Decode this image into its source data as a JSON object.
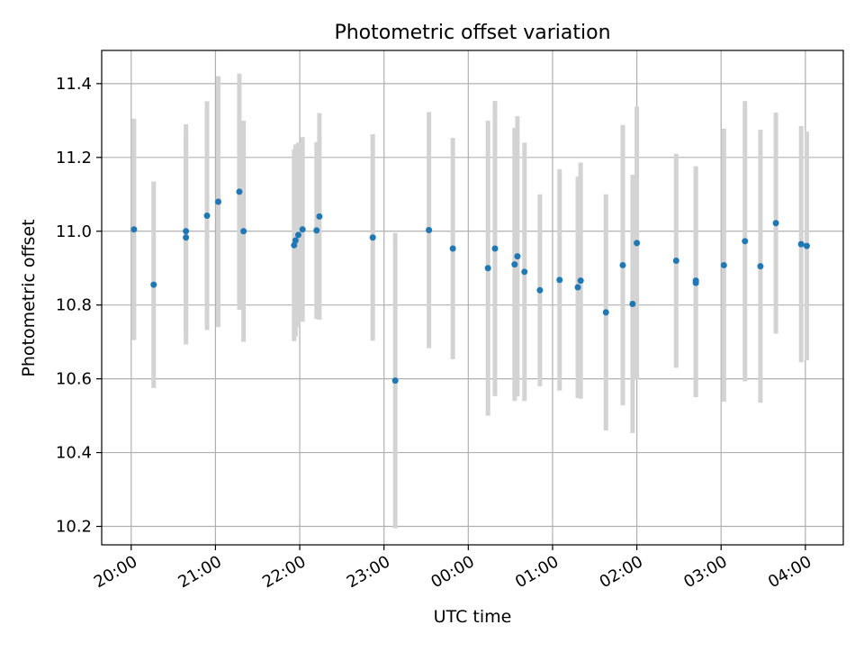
{
  "chart_data": {
    "type": "scatter",
    "title": "Photometric offset variation",
    "xlabel": "UTC time",
    "ylabel": "Photometric offset",
    "xlim": [
      "19:39",
      "04:27"
    ],
    "ylim": [
      10.15,
      11.49
    ],
    "x_ticks": [
      "20:00",
      "21:00",
      "22:00",
      "23:00",
      "00:00",
      "01:00",
      "02:00",
      "03:00",
      "04:00"
    ],
    "y_ticks": [
      "10.2",
      "10.4",
      "10.6",
      "10.8",
      "11.0",
      "11.2",
      "11.4"
    ],
    "grid": true,
    "legend": "none",
    "colors": {
      "point": "#1f77b4",
      "errorbar": "#d3d3d3",
      "grid": "#b0b0b0"
    },
    "points": [
      {
        "x": "20:02",
        "y": 11.005,
        "err": 0.3
      },
      {
        "x": "20:16",
        "y": 10.855,
        "err": 0.28
      },
      {
        "x": "20:39",
        "y": 11.0,
        "err": 0.29
      },
      {
        "x": "20:39",
        "y": 10.983,
        "err": 0.29
      },
      {
        "x": "20:54",
        "y": 11.042,
        "err": 0.31
      },
      {
        "x": "21:02",
        "y": 11.08,
        "err": 0.34
      },
      {
        "x": "21:17",
        "y": 11.107,
        "err": 0.32
      },
      {
        "x": "21:20",
        "y": 11.0,
        "err": 0.3
      },
      {
        "x": "21:56",
        "y": 10.962,
        "err": 0.26
      },
      {
        "x": "21:57",
        "y": 10.975,
        "err": 0.26
      },
      {
        "x": "21:59",
        "y": 10.99,
        "err": 0.25
      },
      {
        "x": "22:02",
        "y": 11.005,
        "err": 0.25
      },
      {
        "x": "22:12",
        "y": 11.002,
        "err": 0.24
      },
      {
        "x": "22:14",
        "y": 11.04,
        "err": 0.28
      },
      {
        "x": "22:52",
        "y": 10.983,
        "err": 0.28
      },
      {
        "x": "23:08",
        "y": 10.595,
        "err": 0.4
      },
      {
        "x": "23:32",
        "y": 11.003,
        "err": 0.32
      },
      {
        "x": "23:49",
        "y": 10.953,
        "err": 0.3
      },
      {
        "x": "00:14",
        "y": 10.9,
        "err": 0.4
      },
      {
        "x": "00:19",
        "y": 10.953,
        "err": 0.4
      },
      {
        "x": "00:33",
        "y": 10.91,
        "err": 0.37
      },
      {
        "x": "00:35",
        "y": 10.932,
        "err": 0.38
      },
      {
        "x": "00:40",
        "y": 10.89,
        "err": 0.35
      },
      {
        "x": "00:51",
        "y": 10.84,
        "err": 0.26
      },
      {
        "x": "01:05",
        "y": 10.868,
        "err": 0.3
      },
      {
        "x": "01:18",
        "y": 10.848,
        "err": 0.3
      },
      {
        "x": "01:20",
        "y": 10.866,
        "err": 0.32
      },
      {
        "x": "01:38",
        "y": 10.78,
        "err": 0.32
      },
      {
        "x": "01:50",
        "y": 10.908,
        "err": 0.38
      },
      {
        "x": "01:57",
        "y": 10.803,
        "err": 0.35
      },
      {
        "x": "02:00",
        "y": 10.968,
        "err": 0.37
      },
      {
        "x": "02:28",
        "y": 10.92,
        "err": 0.29
      },
      {
        "x": "02:42",
        "y": 10.866,
        "err": 0.31
      },
      {
        "x": "02:42",
        "y": 10.86,
        "err": 0.31
      },
      {
        "x": "03:02",
        "y": 10.908,
        "err": 0.37
      },
      {
        "x": "03:17",
        "y": 10.973,
        "err": 0.38
      },
      {
        "x": "03:28",
        "y": 10.905,
        "err": 0.37
      },
      {
        "x": "03:39",
        "y": 11.022,
        "err": 0.3
      },
      {
        "x": "03:57",
        "y": 10.965,
        "err": 0.32
      },
      {
        "x": "04:01",
        "y": 10.96,
        "err": 0.31
      }
    ]
  }
}
